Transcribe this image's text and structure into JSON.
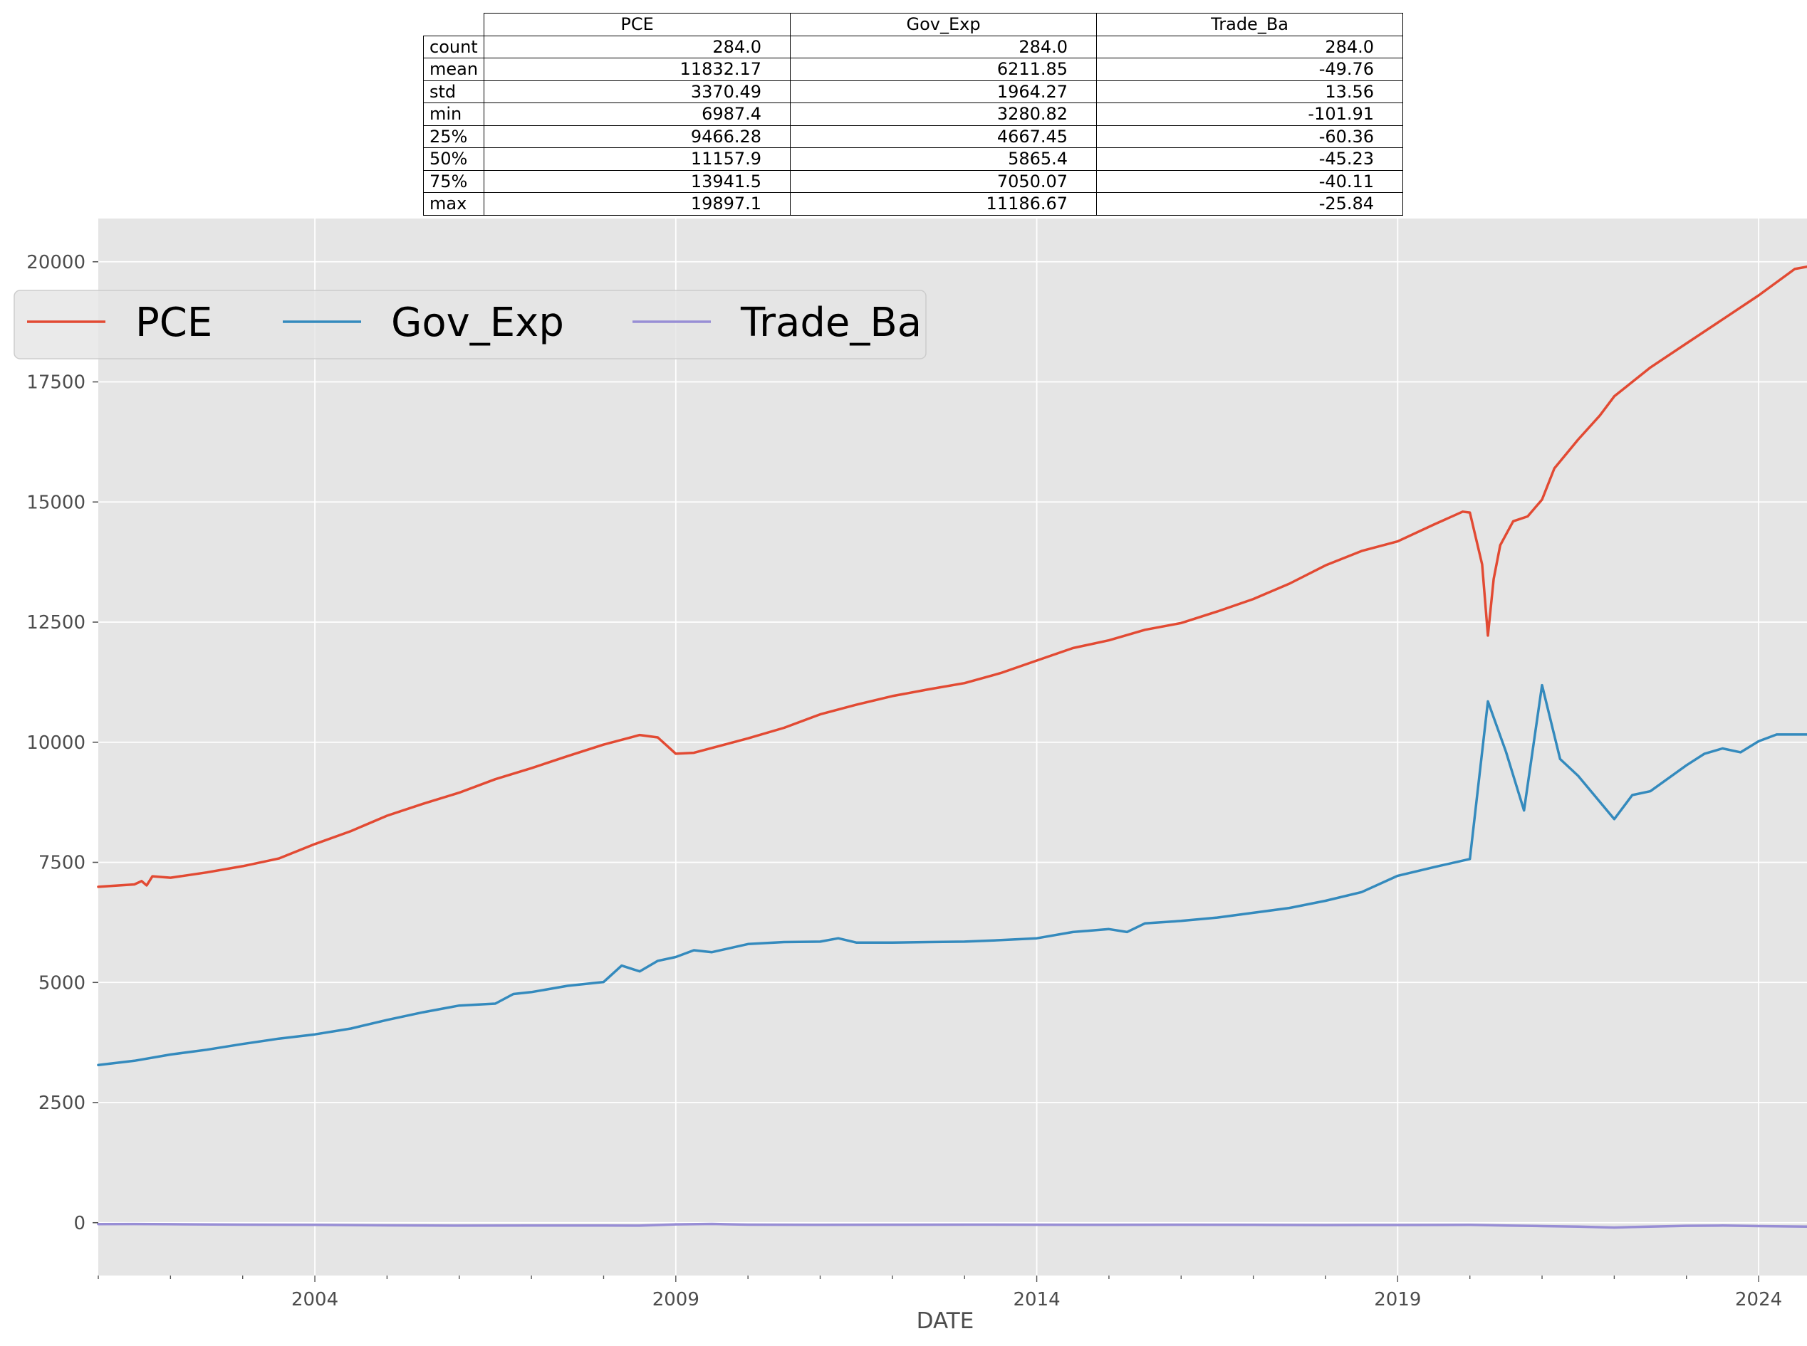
{
  "summary_table": {
    "columns": [
      "PCE",
      "Gov_Exp",
      "Trade_Ba"
    ],
    "rows": [
      {
        "label": "count",
        "values": [
          "284.0",
          "284.0",
          "284.0"
        ]
      },
      {
        "label": "mean",
        "values": [
          "11832.17",
          "6211.85",
          "-49.76"
        ]
      },
      {
        "label": "std",
        "values": [
          "3370.49",
          "1964.27",
          "13.56"
        ]
      },
      {
        "label": "min",
        "values": [
          "6987.4",
          "3280.82",
          "-101.91"
        ]
      },
      {
        "label": "25%",
        "values": [
          "9466.28",
          "4667.45",
          "-60.36"
        ]
      },
      {
        "label": "50%",
        "values": [
          "11157.9",
          "5865.4",
          "-45.23"
        ]
      },
      {
        "label": "75%",
        "values": [
          "13941.5",
          "7050.07",
          "-40.11"
        ]
      },
      {
        "label": "max",
        "values": [
          "19897.1",
          "11186.67",
          "-25.84"
        ]
      }
    ]
  },
  "chart_data": {
    "type": "line",
    "xlabel": "DATE",
    "ylabel": "",
    "xlim": [
      2001.0,
      2024.67
    ],
    "ylim": [
      -1100,
      20900
    ],
    "x_ticks": [
      2004,
      2009,
      2014,
      2019,
      2024
    ],
    "y_ticks": [
      0,
      2500,
      5000,
      7500,
      10000,
      12500,
      15000,
      17500,
      20000
    ],
    "grid": true,
    "legend": {
      "placement": "upper-left",
      "columns": 3
    },
    "series": [
      {
        "name": "PCE",
        "color": "#E24A33",
        "points": [
          [
            2001.0,
            6990
          ],
          [
            2001.5,
            7040
          ],
          [
            2001.6,
            7110
          ],
          [
            2001.67,
            7020
          ],
          [
            2001.75,
            7210
          ],
          [
            2002.0,
            7180
          ],
          [
            2002.5,
            7290
          ],
          [
            2003.0,
            7420
          ],
          [
            2003.5,
            7580
          ],
          [
            2004.0,
            7880
          ],
          [
            2004.5,
            8150
          ],
          [
            2005.0,
            8470
          ],
          [
            2005.5,
            8720
          ],
          [
            2006.0,
            8950
          ],
          [
            2006.5,
            9230
          ],
          [
            2007.0,
            9460
          ],
          [
            2007.5,
            9710
          ],
          [
            2008.0,
            9950
          ],
          [
            2008.5,
            10150
          ],
          [
            2008.75,
            10100
          ],
          [
            2009.0,
            9760
          ],
          [
            2009.25,
            9780
          ],
          [
            2009.5,
            9880
          ],
          [
            2010.0,
            10080
          ],
          [
            2010.5,
            10300
          ],
          [
            2011.0,
            10580
          ],
          [
            2011.5,
            10780
          ],
          [
            2012.0,
            10960
          ],
          [
            2012.5,
            11100
          ],
          [
            2013.0,
            11230
          ],
          [
            2013.5,
            11440
          ],
          [
            2014.0,
            11700
          ],
          [
            2014.5,
            11960
          ],
          [
            2015.0,
            12120
          ],
          [
            2015.5,
            12340
          ],
          [
            2016.0,
            12480
          ],
          [
            2016.5,
            12720
          ],
          [
            2017.0,
            12980
          ],
          [
            2017.5,
            13300
          ],
          [
            2018.0,
            13680
          ],
          [
            2018.5,
            13980
          ],
          [
            2019.0,
            14180
          ],
          [
            2019.5,
            14530
          ],
          [
            2019.9,
            14800
          ],
          [
            2020.0,
            14780
          ],
          [
            2020.17,
            13700
          ],
          [
            2020.25,
            12220
          ],
          [
            2020.33,
            13400
          ],
          [
            2020.42,
            14100
          ],
          [
            2020.6,
            14600
          ],
          [
            2020.8,
            14700
          ],
          [
            2021.0,
            15050
          ],
          [
            2021.17,
            15700
          ],
          [
            2021.5,
            16300
          ],
          [
            2021.8,
            16800
          ],
          [
            2022.0,
            17200
          ],
          [
            2022.5,
            17800
          ],
          [
            2023.0,
            18300
          ],
          [
            2023.5,
            18800
          ],
          [
            2024.0,
            19300
          ],
          [
            2024.5,
            19850
          ],
          [
            2024.67,
            19897
          ]
        ]
      },
      {
        "name": "Gov_Exp",
        "color": "#348ABD",
        "points": [
          [
            2001.0,
            3280
          ],
          [
            2001.5,
            3370
          ],
          [
            2002.0,
            3500
          ],
          [
            2002.5,
            3600
          ],
          [
            2003.0,
            3720
          ],
          [
            2003.5,
            3830
          ],
          [
            2004.0,
            3920
          ],
          [
            2004.5,
            4040
          ],
          [
            2005.0,
            4220
          ],
          [
            2005.5,
            4380
          ],
          [
            2006.0,
            4520
          ],
          [
            2006.5,
            4560
          ],
          [
            2006.75,
            4760
          ],
          [
            2007.0,
            4800
          ],
          [
            2007.5,
            4930
          ],
          [
            2008.0,
            5010
          ],
          [
            2008.25,
            5350
          ],
          [
            2008.5,
            5230
          ],
          [
            2008.75,
            5450
          ],
          [
            2009.0,
            5530
          ],
          [
            2009.25,
            5670
          ],
          [
            2009.5,
            5630
          ],
          [
            2010.0,
            5800
          ],
          [
            2010.5,
            5840
          ],
          [
            2011.0,
            5850
          ],
          [
            2011.25,
            5920
          ],
          [
            2011.5,
            5830
          ],
          [
            2012.0,
            5830
          ],
          [
            2012.5,
            5840
          ],
          [
            2013.0,
            5850
          ],
          [
            2013.5,
            5880
          ],
          [
            2014.0,
            5920
          ],
          [
            2014.5,
            6050
          ],
          [
            2015.0,
            6110
          ],
          [
            2015.25,
            6050
          ],
          [
            2015.5,
            6230
          ],
          [
            2016.0,
            6280
          ],
          [
            2016.5,
            6350
          ],
          [
            2017.0,
            6450
          ],
          [
            2017.5,
            6550
          ],
          [
            2018.0,
            6700
          ],
          [
            2018.5,
            6880
          ],
          [
            2019.0,
            7220
          ],
          [
            2019.5,
            7400
          ],
          [
            2020.0,
            7570
          ],
          [
            2020.25,
            10850
          ],
          [
            2020.5,
            9800
          ],
          [
            2020.75,
            8580
          ],
          [
            2021.0,
            11187
          ],
          [
            2021.25,
            9650
          ],
          [
            2021.5,
            9300
          ],
          [
            2022.0,
            8400
          ],
          [
            2022.25,
            8900
          ],
          [
            2022.5,
            8980
          ],
          [
            2023.0,
            9520
          ],
          [
            2023.25,
            9760
          ],
          [
            2023.5,
            9870
          ],
          [
            2023.75,
            9790
          ],
          [
            2024.0,
            10020
          ],
          [
            2024.25,
            10160
          ],
          [
            2024.67,
            10160
          ]
        ]
      },
      {
        "name": "Trade_Ba",
        "color": "#988ED5",
        "points": [
          [
            2001.0,
            -30
          ],
          [
            2001.5,
            -28
          ],
          [
            2002.0,
            -32
          ],
          [
            2003.0,
            -40
          ],
          [
            2004.0,
            -45
          ],
          [
            2005.0,
            -55
          ],
          [
            2006.0,
            -62
          ],
          [
            2007.0,
            -58
          ],
          [
            2008.0,
            -60
          ],
          [
            2008.5,
            -62
          ],
          [
            2009.0,
            -35
          ],
          [
            2009.5,
            -26
          ],
          [
            2010.0,
            -40
          ],
          [
            2011.0,
            -45
          ],
          [
            2012.0,
            -42
          ],
          [
            2013.0,
            -40
          ],
          [
            2014.0,
            -42
          ],
          [
            2015.0,
            -45
          ],
          [
            2016.0,
            -42
          ],
          [
            2017.0,
            -45
          ],
          [
            2018.0,
            -50
          ],
          [
            2019.0,
            -48
          ],
          [
            2020.0,
            -45
          ],
          [
            2020.5,
            -58
          ],
          [
            2021.0,
            -70
          ],
          [
            2021.5,
            -80
          ],
          [
            2022.0,
            -101
          ],
          [
            2022.5,
            -80
          ],
          [
            2023.0,
            -65
          ],
          [
            2023.5,
            -60
          ],
          [
            2024.0,
            -70
          ],
          [
            2024.67,
            -80
          ]
        ]
      }
    ]
  }
}
